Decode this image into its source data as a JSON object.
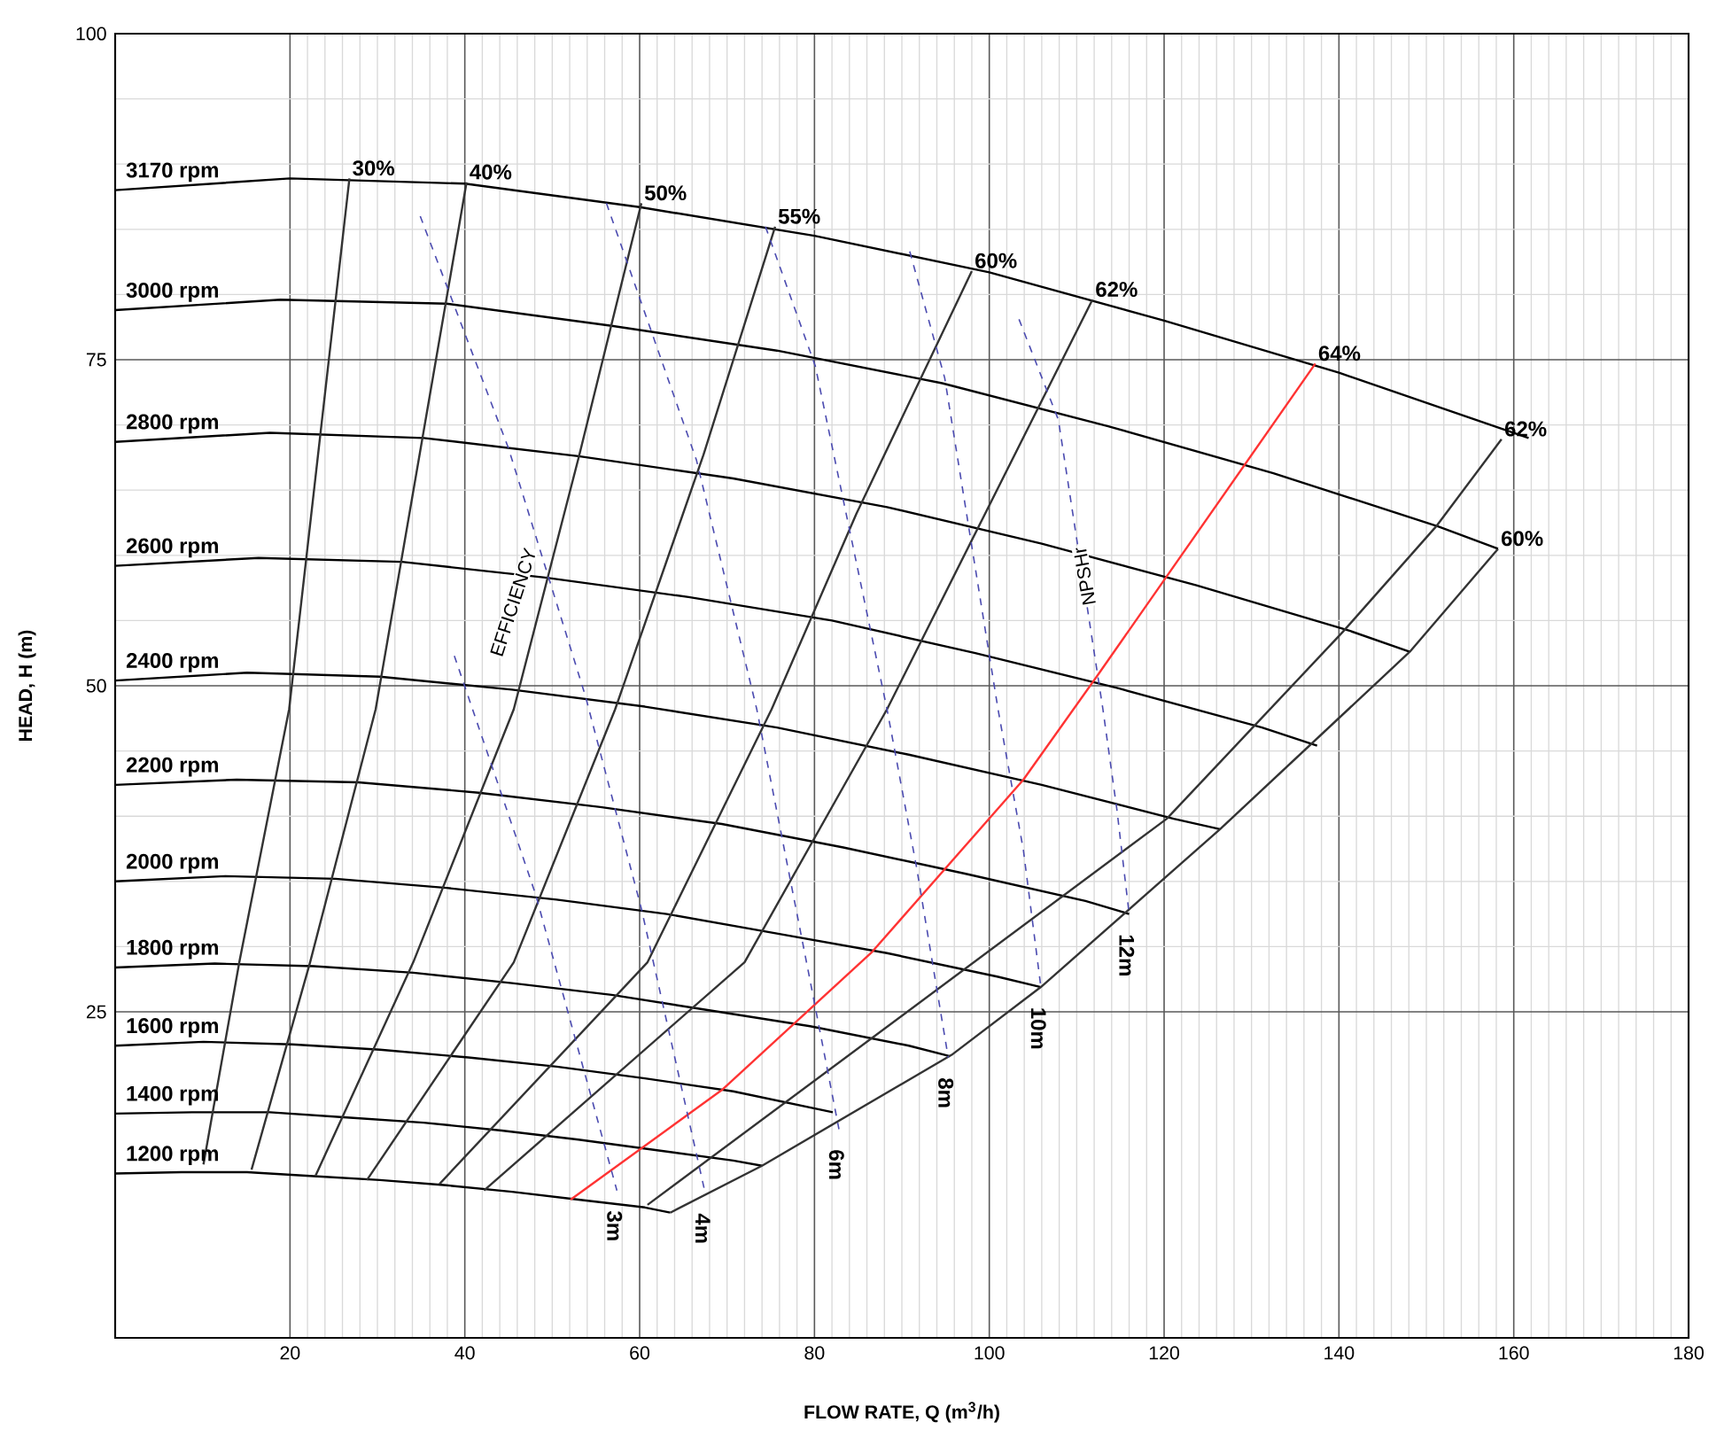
{
  "chart_data": {
    "type": "line",
    "xlabel": "FLOW RATE, Q (m$^{3}$/h)",
    "ylabel": "HEAD, H (m)",
    "xlim": [
      0,
      180
    ],
    "ylim": [
      0,
      100
    ],
    "xticks": [
      20,
      40,
      60,
      80,
      100,
      120,
      140,
      160,
      180
    ],
    "yticks": [
      25,
      50,
      75,
      100
    ],
    "grid": true,
    "line_style": "solid",
    "annotations": [
      "EFFICIENCY",
      "NPSHr"
    ],
    "series": [
      {
        "name": "3170 rpm",
        "color": "#000000",
        "x": [
          0,
          20,
          40,
          60,
          80,
          100,
          120,
          140,
          161.7
        ],
        "values": [
          88.0,
          88.9,
          88.5,
          86.7,
          84.5,
          81.7,
          78.0,
          74.0,
          69.0
        ]
      },
      {
        "name": "3000 rpm",
        "color": "#000000",
        "x": [
          0,
          18.9,
          37.9,
          56.8,
          75.7,
          94.6,
          113.6,
          132.5,
          151.4,
          158.2
        ],
        "values": [
          78.8,
          79.6,
          79.3,
          77.6,
          75.7,
          73.2,
          69.9,
          66.3,
          62.2,
          60.5
        ]
      },
      {
        "name": "2800 rpm",
        "color": "#000000",
        "x": [
          0,
          17.7,
          35.3,
          53.0,
          70.7,
          88.3,
          106.0,
          123.7,
          141.3,
          148.1
        ],
        "values": [
          68.7,
          69.4,
          69.0,
          67.6,
          65.9,
          63.7,
          60.9,
          57.7,
          54.2,
          52.6
        ]
      },
      {
        "name": "2600 rpm",
        "color": "#000000",
        "x": [
          0,
          16.4,
          32.8,
          49.2,
          65.6,
          82.0,
          98.4,
          114.8,
          131.2,
          137.5
        ],
        "values": [
          59.2,
          59.8,
          59.5,
          58.3,
          56.8,
          55.0,
          52.5,
          49.8,
          46.8,
          45.4
        ]
      },
      {
        "name": "2400 rpm",
        "color": "#000000",
        "x": [
          0,
          15.1,
          30.3,
          45.4,
          60.6,
          75.7,
          90.9,
          106.0,
          121.1,
          126.4
        ],
        "values": [
          50.4,
          51.0,
          50.7,
          49.7,
          48.4,
          46.8,
          44.7,
          42.4,
          39.8,
          39.0
        ]
      },
      {
        "name": "2200 rpm",
        "color": "#000000",
        "x": [
          0,
          13.9,
          27.8,
          41.6,
          55.5,
          69.4,
          83.3,
          97.2,
          111.0,
          116.0
        ],
        "values": [
          42.4,
          42.8,
          42.6,
          41.8,
          40.7,
          39.4,
          37.6,
          35.6,
          33.5,
          32.5
        ]
      },
      {
        "name": "2000 rpm",
        "color": "#000000",
        "x": [
          0,
          12.6,
          25.2,
          37.9,
          50.5,
          63.1,
          75.7,
          88.3,
          100.9,
          105.9
        ],
        "values": [
          35.0,
          35.4,
          35.2,
          34.5,
          33.6,
          32.5,
          31.0,
          29.5,
          27.7,
          26.9
        ]
      },
      {
        "name": "1800 rpm",
        "color": "#000000",
        "x": [
          0,
          11.4,
          22.7,
          34.1,
          45.4,
          56.8,
          68.1,
          79.5,
          90.8,
          95.5
        ],
        "values": [
          28.4,
          28.7,
          28.5,
          28.0,
          27.2,
          26.3,
          25.1,
          23.9,
          22.4,
          21.6
        ]
      },
      {
        "name": "1600 rpm",
        "color": "#000000",
        "x": [
          0,
          10.1,
          20.2,
          30.3,
          40.4,
          50.5,
          60.6,
          70.7,
          82.1
        ],
        "values": [
          22.4,
          22.7,
          22.5,
          22.1,
          21.5,
          20.8,
          19.9,
          18.9,
          17.3
        ]
      },
      {
        "name": "1400 rpm",
        "color": "#000000",
        "x": [
          0,
          8.8,
          17.7,
          26.5,
          35.3,
          44.2,
          53.0,
          61.8,
          70.7,
          74.0
        ],
        "values": [
          17.2,
          17.3,
          17.3,
          16.9,
          16.5,
          15.9,
          15.2,
          14.4,
          13.6,
          13.2
        ]
      },
      {
        "name": "1200 rpm",
        "color": "#000000",
        "x": [
          0,
          7.6,
          15.1,
          22.7,
          30.3,
          37.9,
          45.4,
          53.0,
          60.6,
          63.5
        ],
        "values": [
          12.6,
          12.7,
          12.7,
          12.4,
          12.1,
          11.7,
          11.2,
          10.6,
          10.0,
          9.6
        ]
      },
      {
        "name": "30%",
        "color": "#333333",
        "x": [
          10.1,
          14.2,
          19.9,
          26.8
        ],
        "values": [
          13.3,
          28.8,
          48.2,
          88.9
        ]
      },
      {
        "name": "40%",
        "color": "#333333",
        "x": [
          15.6,
          22.3,
          29.8,
          40.2
        ],
        "values": [
          12.9,
          28.8,
          48.2,
          88.6
        ]
      },
      {
        "name": "50%",
        "color": "#333333",
        "x": [
          22.9,
          34.1,
          45.6,
          53.1,
          60.2
        ],
        "values": [
          12.4,
          28.8,
          48.2,
          67.7,
          87.0
        ]
      },
      {
        "name": "55%",
        "color": "#333333",
        "x": [
          28.8,
          45.6,
          57.2,
          67.3,
          75.5
        ],
        "values": [
          12.1,
          28.8,
          48.2,
          67.7,
          85.2
        ]
      },
      {
        "name": "60%",
        "color": "#333333",
        "x": [
          37.1,
          60.9,
          75.1,
          84.8,
          98.0
        ],
        "values": [
          11.8,
          28.8,
          48.2,
          63.2,
          81.8
        ]
      },
      {
        "name": "62%",
        "color": "#333333",
        "x": [
          42.2,
          72.0,
          88.3,
          111.8
        ],
        "values": [
          11.3,
          28.8,
          48.2,
          79.6
        ]
      },
      {
        "name": "64%",
        "color": "#ff3333",
        "x": [
          52.1,
          69.4,
          86.6,
          103.9,
          112.6,
          137.3
        ],
        "values": [
          10.6,
          19.0,
          29.6,
          42.8,
          51.0,
          74.7
        ]
      },
      {
        "name": "62%",
        "color": "#333333",
        "x": [
          60.9,
          120.3,
          140.4,
          151.1,
          158.6
        ],
        "values": [
          10.2,
          39.8,
          54.1,
          62.2,
          68.9
        ]
      },
      {
        "name": "60%",
        "color": "#333333",
        "x": [
          63.5,
          74.0,
          95.7,
          105.9,
          126.4,
          148.1,
          158.2
        ],
        "values": [
          9.6,
          13.2,
          21.7,
          26.9,
          39.0,
          52.6,
          60.5
        ]
      },
      {
        "name": "3m",
        "color": "#4b4bb0",
        "line_style": "dashed",
        "x": [
          38.8,
          48.1,
          57.4
        ],
        "values": [
          52.3,
          34.0,
          11.3
        ]
      },
      {
        "name": "4m",
        "color": "#4b4bb0",
        "line_style": "dashed",
        "x": [
          34.9,
          45.0,
          53.8,
          60.2,
          67.5
        ],
        "values": [
          86.0,
          68.2,
          49.2,
          32.9,
          11.1
        ]
      },
      {
        "name": "6m",
        "color": "#4b4bb0",
        "line_style": "dashed",
        "x": [
          56.2,
          66.5,
          73.4,
          79.5,
          82.8
        ],
        "values": [
          87.0,
          67.3,
          48.2,
          27.4,
          16.0
        ]
      },
      {
        "name": "8m",
        "color": "#4b4bb0",
        "line_style": "dashed",
        "x": [
          74.4,
          80.1,
          88.3,
          91.7,
          95.3
        ],
        "values": [
          85.2,
          74.5,
          48.2,
          36.0,
          21.5
        ]
      },
      {
        "name": "10m",
        "color": "#4b4bb0",
        "line_style": "dashed",
        "x": [
          90.9,
          94.9,
          101.0,
          103.9,
          105.9
        ],
        "values": [
          83.3,
          73.6,
          48.2,
          37.4,
          26.9
        ]
      },
      {
        "name": "12m",
        "color": "#4b4bb0",
        "line_style": "dashed",
        "x": [
          103.4,
          107.9,
          113.0,
          114.6,
          116.0
        ],
        "values": [
          78.1,
          70.4,
          48.2,
          40.5,
          32.5
        ]
      }
    ]
  }
}
